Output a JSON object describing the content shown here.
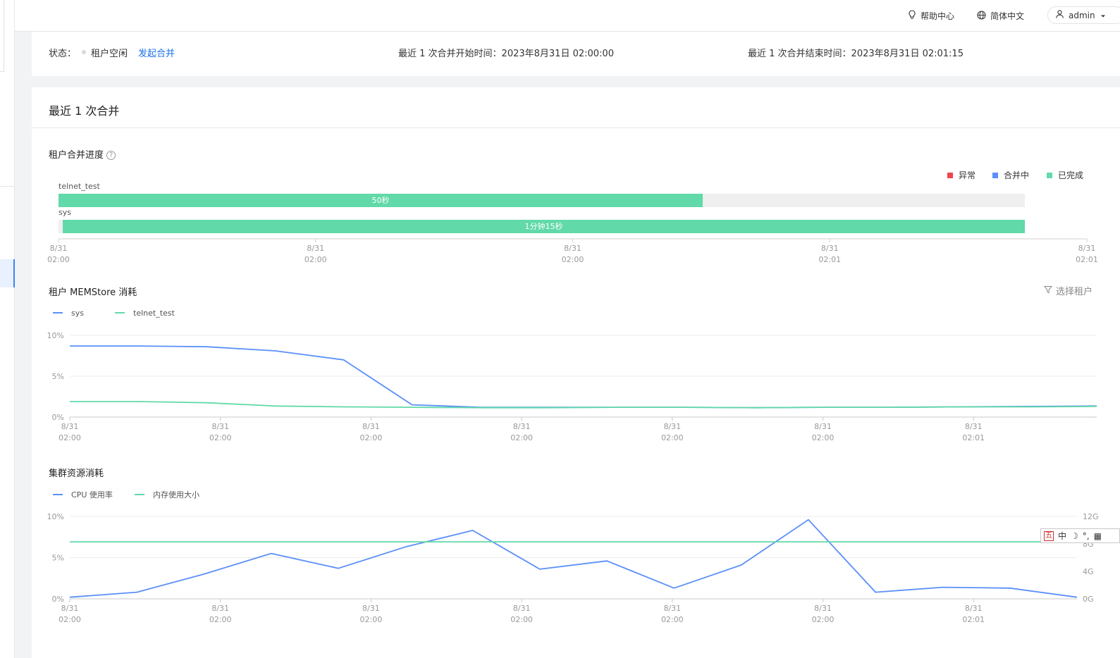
{
  "topbar": {
    "help_label": "帮助中心",
    "lang_label": "简体中文",
    "user_label": "admin"
  },
  "status": {
    "state_label": "状态：",
    "state_value": "租户空闲",
    "merge_link": "发起合并",
    "start_label": "最近 1 次合并开始时间：",
    "start_value": "2023年8月31日 02:00:00",
    "end_label": "最近 1 次合并结束时间：",
    "end_value": "2023年8月31日 02:01:15"
  },
  "panel": {
    "title": "最近 1 次合并",
    "progress_title": "租户合并进度",
    "memstore_title": "租户 MEMStore 消耗",
    "select_tenant_label": "选择租户",
    "cluster_title": "集群资源消耗"
  },
  "ime": {
    "box_label": "五",
    "mode_label": "中",
    "extra": "°,"
  },
  "colors": {
    "error": "#f0434e",
    "merging": "#5b8ff9",
    "done": "#61d9a8",
    "track": "#efefef"
  },
  "chart_data": [
    {
      "type": "bar",
      "orientation": "horizontal",
      "legend": [
        {
          "name": "异常",
          "color": "#f0434e"
        },
        {
          "name": "合并中",
          "color": "#5b8ff9"
        },
        {
          "name": "已完成",
          "color": "#61d9a8"
        }
      ],
      "legend_position": "top-right",
      "tasks": [
        {
          "name": "telnet_test",
          "label": "50秒",
          "start": "02:00:00",
          "end": "02:00:50",
          "status": "已完成"
        },
        {
          "name": "sys",
          "label": "1分钟15秒",
          "start": "02:00:00",
          "end": "02:01:15",
          "status": "已完成"
        }
      ],
      "x_ticks": [
        [
          "8/31",
          "02:00"
        ],
        [
          "8/31",
          "02:00"
        ],
        [
          "8/31",
          "02:00"
        ],
        [
          "8/31",
          "02:01"
        ],
        [
          "8/31",
          "02:01"
        ]
      ]
    },
    {
      "type": "line",
      "legend": [
        "sys",
        "telnet_test"
      ],
      "legend_position": "top-left",
      "series": [
        {
          "name": "sys",
          "color": "#5b8ff9",
          "values": [
            8.7,
            8.7,
            8.6,
            8.1,
            7.0,
            1.5,
            1.2,
            1.2,
            1.2,
            1.2,
            1.15,
            1.2,
            1.2,
            1.25,
            1.3,
            1.35
          ]
        },
        {
          "name": "telnet_test",
          "color": "#61d9a8",
          "values": [
            1.9,
            1.9,
            1.75,
            1.35,
            1.25,
            1.2,
            1.15,
            1.15,
            1.2,
            1.2,
            1.15,
            1.2,
            1.2,
            1.25,
            1.25,
            1.3
          ]
        }
      ],
      "y_ticks": [
        "0%",
        "5%",
        "10%"
      ],
      "ylim": [
        0,
        10
      ],
      "x_ticks": [
        [
          "8/31",
          "02:00"
        ],
        [
          "8/31",
          "02:00"
        ],
        [
          "8/31",
          "02:00"
        ],
        [
          "8/31",
          "02:00"
        ],
        [
          "8/31",
          "02:00"
        ],
        [
          "8/31",
          "02:00"
        ],
        [
          "8/31",
          "02:01"
        ]
      ],
      "grid": true
    },
    {
      "type": "line",
      "legend": [
        "CPU 使用率",
        "内存使用大小"
      ],
      "legend_position": "top-left",
      "series": [
        {
          "name": "CPU 使用率",
          "color": "#5b8ff9",
          "axis": "left",
          "values": [
            0.2,
            0.8,
            3.0,
            5.5,
            3.7,
            6.3,
            8.3,
            3.6,
            4.6,
            1.3,
            4.1,
            9.6,
            0.8,
            1.4,
            1.3,
            0.2
          ]
        },
        {
          "name": "内存使用大小",
          "color": "#61d9a8",
          "axis": "right",
          "values": [
            8.3,
            8.3,
            8.3,
            8.3,
            8.3,
            8.3,
            8.3,
            8.3,
            8.3,
            8.3,
            8.3,
            8.3,
            8.3,
            8.3,
            8.3,
            8.3
          ]
        }
      ],
      "y_ticks": [
        "0%",
        "5%",
        "10%"
      ],
      "ylim": [
        0,
        10
      ],
      "y2_ticks": [
        "0G",
        "4G",
        "8G",
        "12G"
      ],
      "y2lim": [
        0,
        12
      ],
      "x_ticks": [
        [
          "8/31",
          "02:00"
        ],
        [
          "8/31",
          "02:00"
        ],
        [
          "8/31",
          "02:00"
        ],
        [
          "8/31",
          "02:00"
        ],
        [
          "8/31",
          "02:00"
        ],
        [
          "8/31",
          "02:00"
        ],
        [
          "8/31",
          "02:01"
        ]
      ],
      "grid": true
    }
  ]
}
